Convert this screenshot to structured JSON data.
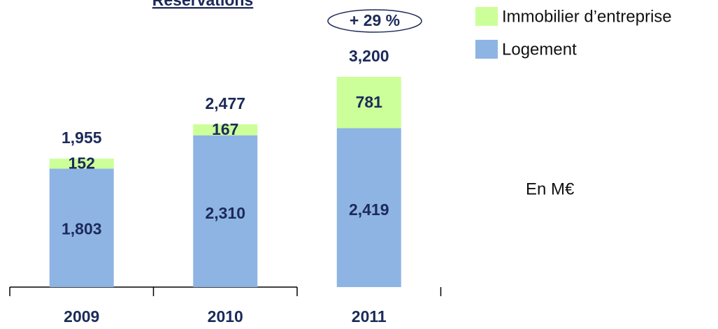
{
  "chart_data": {
    "type": "stacked_bar",
    "title": "Réservations",
    "categories": [
      "2009",
      "2010",
      "2011"
    ],
    "series": [
      {
        "name": "Logement",
        "color": "#8eb4e3",
        "values": [
          1803,
          2310,
          2419
        ],
        "value_labels": [
          "1,803",
          "2,310",
          "2,419"
        ]
      },
      {
        "name": "Immobilier d’entreprise",
        "color": "#ccff99",
        "values": [
          152,
          167,
          781
        ]
      }
    ],
    "totals": [
      1955,
      2477,
      3200
    ],
    "total_labels": [
      "1,955",
      "2,477",
      "3,200"
    ],
    "annotation": "+ 29 %",
    "unit_note": "En M€"
  }
}
